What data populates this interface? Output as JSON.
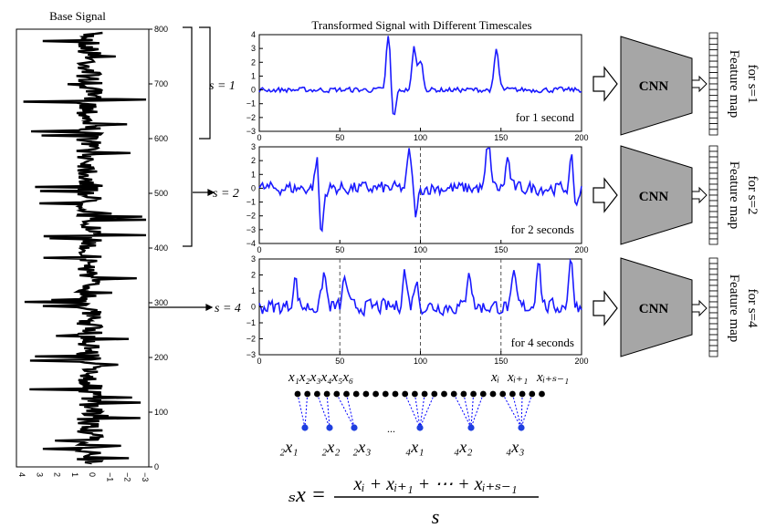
{
  "base_signal": {
    "title": "Base Signal",
    "yticks": [
      "800",
      "700",
      "600",
      "500",
      "400",
      "300",
      "200",
      "100",
      "0"
    ],
    "xticks": [
      "4",
      "3",
      "2",
      "1",
      "0",
      "−1",
      "−2",
      "−3"
    ]
  },
  "transformed": {
    "title": "Transformed Signal with Different Timescales",
    "xticks": [
      "0",
      "50",
      "100",
      "150",
      "200"
    ],
    "panels": [
      {
        "scale_label": "s = 1",
        "caption": "for 1 second",
        "yticks": [
          "4",
          "3",
          "2",
          "1",
          "0",
          "−1",
          "−2",
          "−3"
        ],
        "yrange": [
          -3,
          4
        ],
        "dashed_x": []
      },
      {
        "scale_label": "s = 2",
        "caption": "for 2 seconds",
        "yticks": [
          "3",
          "2",
          "1",
          "0",
          "−1",
          "−2",
          "−3",
          "−4"
        ],
        "yrange": [
          -4,
          3
        ],
        "dashed_x": [
          100
        ]
      },
      {
        "scale_label": "s = 4",
        "caption": "for 4 seconds",
        "yticks": [
          "3",
          "2",
          "1",
          "0",
          "−1",
          "−2",
          "−3"
        ],
        "yrange": [
          -3,
          3
        ],
        "dashed_x": [
          50,
          100,
          150
        ]
      }
    ]
  },
  "cnn": {
    "label": "CNN",
    "feature_maps": [
      "Feature map",
      "Feature map",
      "Feature map"
    ],
    "feature_for": [
      "for s=1",
      "for s=2",
      "for s=4"
    ],
    "color": "#a6a6a6"
  },
  "coarse_graining": {
    "top_labels": [
      "x₁x₂x₃x₄x₅x₆",
      "xᵢ",
      "xᵢ₊₁",
      "xᵢ₊ₛ₋₁"
    ],
    "bottom_labels": [
      "₂x₁",
      "₂x₂",
      "₂x₃",
      "₄x₁",
      "₄x₂",
      "₄x₃"
    ],
    "ellipsis": "...",
    "formula_lhs": "ₛx =",
    "formula_numerator": "xᵢ + xᵢ₊₁ + ⋯ + xᵢ₊ₛ₋₁",
    "formula_denominator": "s",
    "line_color": "#0000ff",
    "dot_color": "#000000",
    "coarse_dot_color": "#1f3fdf"
  }
}
